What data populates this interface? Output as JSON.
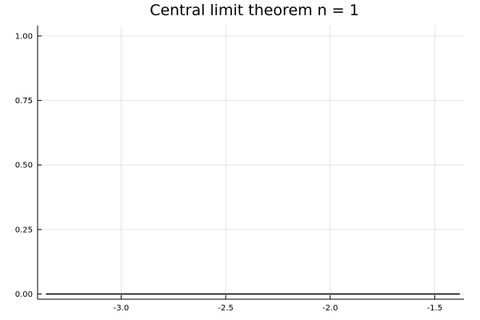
{
  "chart_data": {
    "type": "line",
    "title": "Central limit theorem n = 1",
    "xlabel": "",
    "ylabel": "",
    "xlim": [
      -3.4,
      -1.36
    ],
    "ylim": [
      -0.02,
      1.04
    ],
    "xticks": [
      -3.0,
      -2.5,
      -2.0,
      -1.5
    ],
    "xtick_labels": [
      "-3.0",
      "-2.5",
      "-2.0",
      "-1.5"
    ],
    "yticks": [
      0.0,
      0.25,
      0.5,
      0.75,
      1.0
    ],
    "ytick_labels": [
      "0.00",
      "0.25",
      "0.50",
      "0.75",
      "1.00"
    ],
    "grid": true,
    "legend": "none",
    "series": [
      {
        "color": "#000000",
        "x": [
          -3.36,
          -1.38
        ],
        "y": [
          0.0,
          0.0
        ]
      }
    ]
  }
}
